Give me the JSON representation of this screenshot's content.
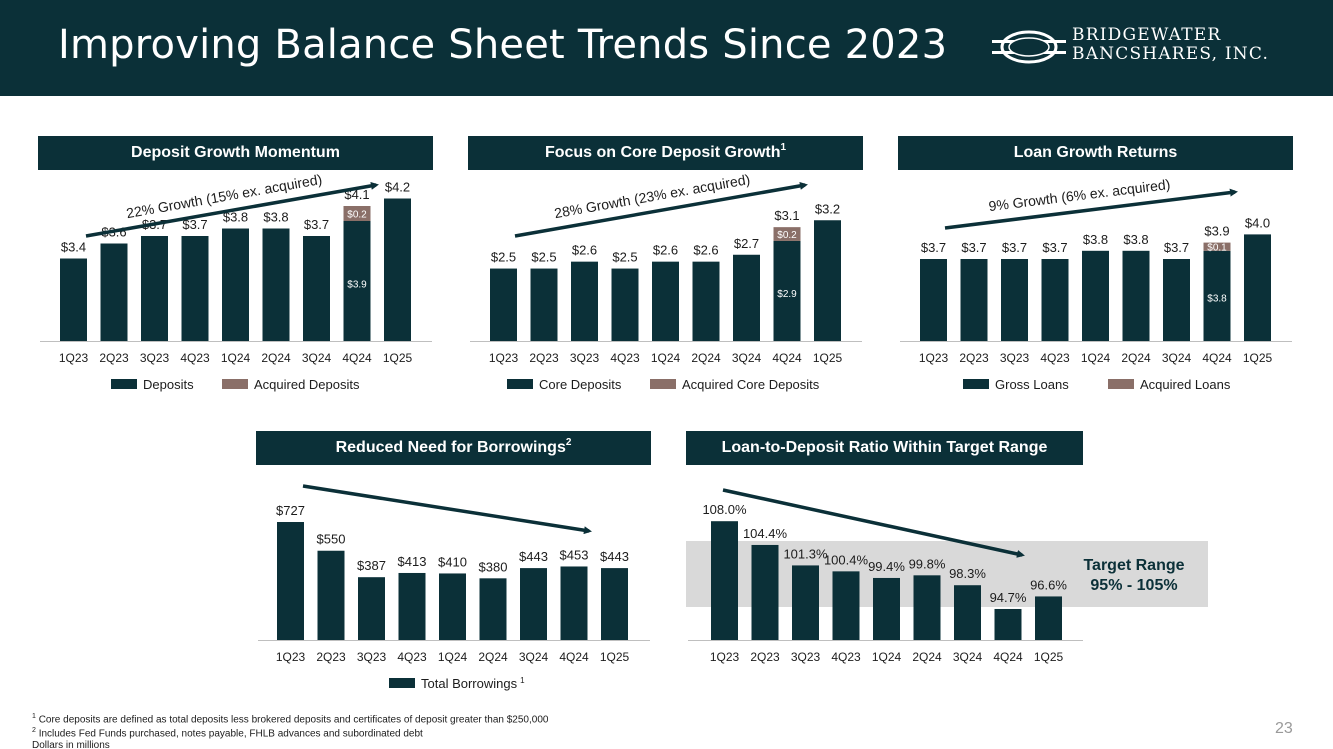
{
  "page": {
    "title": "Improving Balance Sheet Trends Since 2023",
    "logo_line1": "BRIDGEWATER",
    "logo_line2": "BANCSHARES, INC.",
    "page_number": "23",
    "footnotes": [
      "Core deposits are defined as total deposits less brokered deposits and certificates of deposit greater than $250,000",
      "Includes Fed Funds purchased, notes payable, FHLB advances and subordinated debt",
      "Dollars in millions"
    ],
    "colors": {
      "primary": "#0b3038",
      "acquired": "#8a6f68",
      "target_band": "#d9d9d9",
      "muted": "#9a9a9a"
    }
  },
  "panels": {
    "deposits_title": "Deposit Growth Momentum",
    "core_title": "Focus on Core Deposit Growth",
    "core_title_sup": "1",
    "loans_title": "Loan Growth Returns",
    "borrow_title": "Reduced Need for Borrowings",
    "borrow_title_sup": "2",
    "ltd_title": "Loan-to-Deposit Ratio Within Target Range",
    "target_label_1": "Target Range",
    "target_label_2": "95% - 105%"
  },
  "chart_data": [
    {
      "id": "deposits",
      "type": "bar",
      "categories": [
        "1Q23",
        "2Q23",
        "3Q23",
        "4Q23",
        "1Q24",
        "2Q24",
        "3Q24",
        "4Q24",
        "1Q25"
      ],
      "series": [
        {
          "name": "Deposits",
          "values": [
            3.4,
            3.6,
            3.7,
            3.7,
            3.8,
            3.8,
            3.7,
            3.9,
            4.2
          ]
        },
        {
          "name": "Acquired Deposits",
          "values": [
            0,
            0,
            0,
            0,
            0,
            0,
            0,
            0.2,
            0
          ]
        }
      ],
      "labels": [
        "$3.4",
        "$3.6",
        "$3.7",
        "$3.7",
        "$3.8",
        "$3.8",
        "$3.7",
        "$4.1",
        "$4.2"
      ],
      "inner_labels": {
        "index": 7,
        "base": "$3.9",
        "top": "$0.2"
      },
      "annotation": "22% Growth (15% ex. acquired)",
      "legend_position": "bottom"
    },
    {
      "id": "core",
      "type": "bar",
      "categories": [
        "1Q23",
        "2Q23",
        "3Q23",
        "4Q23",
        "1Q24",
        "2Q24",
        "3Q24",
        "4Q24",
        "1Q25"
      ],
      "series": [
        {
          "name": "Core Deposits",
          "values": [
            2.5,
            2.5,
            2.6,
            2.5,
            2.6,
            2.6,
            2.7,
            2.9,
            3.2
          ]
        },
        {
          "name": "Acquired Core Deposits",
          "values": [
            0,
            0,
            0,
            0,
            0,
            0,
            0,
            0.2,
            0
          ]
        }
      ],
      "labels": [
        "$2.5",
        "$2.5",
        "$2.6",
        "$2.5",
        "$2.6",
        "$2.6",
        "$2.7",
        "$3.1",
        "$3.2"
      ],
      "inner_labels": {
        "index": 7,
        "base": "$2.9",
        "top": "$0.2"
      },
      "annotation": "28% Growth (23% ex. acquired)",
      "legend_position": "bottom"
    },
    {
      "id": "loans",
      "type": "bar",
      "categories": [
        "1Q23",
        "2Q23",
        "3Q23",
        "4Q23",
        "1Q24",
        "2Q24",
        "3Q24",
        "4Q24",
        "1Q25"
      ],
      "series": [
        {
          "name": "Gross Loans",
          "values": [
            3.7,
            3.7,
            3.7,
            3.7,
            3.8,
            3.8,
            3.7,
            3.8,
            4.0
          ]
        },
        {
          "name": "Acquired Loans",
          "values": [
            0,
            0,
            0,
            0,
            0,
            0,
            0,
            0.1,
            0
          ]
        }
      ],
      "labels": [
        "$3.7",
        "$3.7",
        "$3.7",
        "$3.7",
        "$3.8",
        "$3.8",
        "$3.7",
        "$3.9",
        "$4.0"
      ],
      "inner_labels": {
        "index": 7,
        "base": "$3.8",
        "top": "$0.1"
      },
      "annotation": "9% Growth (6% ex. acquired)",
      "legend_position": "bottom"
    },
    {
      "id": "borrowings",
      "type": "bar",
      "categories": [
        "1Q23",
        "2Q23",
        "3Q23",
        "4Q23",
        "1Q24",
        "2Q24",
        "3Q24",
        "4Q24",
        "1Q25"
      ],
      "series": [
        {
          "name": "Total Borrowings",
          "values": [
            727,
            550,
            387,
            413,
            410,
            380,
            443,
            453,
            443
          ]
        }
      ],
      "labels": [
        "$727",
        "$550",
        "$387",
        "$413",
        "$410",
        "$380",
        "$443",
        "$453",
        "$443"
      ],
      "legend_sup": "1",
      "legend_position": "bottom"
    },
    {
      "id": "ltd",
      "type": "bar",
      "categories": [
        "1Q23",
        "2Q23",
        "3Q23",
        "4Q23",
        "1Q24",
        "2Q24",
        "3Q24",
        "4Q24",
        "1Q25"
      ],
      "series": [
        {
          "values": [
            108.0,
            104.4,
            101.3,
            100.4,
            99.4,
            99.8,
            98.3,
            94.7,
            96.6
          ]
        }
      ],
      "labels": [
        "108.0%",
        "104.4%",
        "101.3%",
        "100.4%",
        "99.4%",
        "99.8%",
        "98.3%",
        "94.7%",
        "96.6%"
      ],
      "target_range": [
        95,
        105
      ]
    }
  ]
}
